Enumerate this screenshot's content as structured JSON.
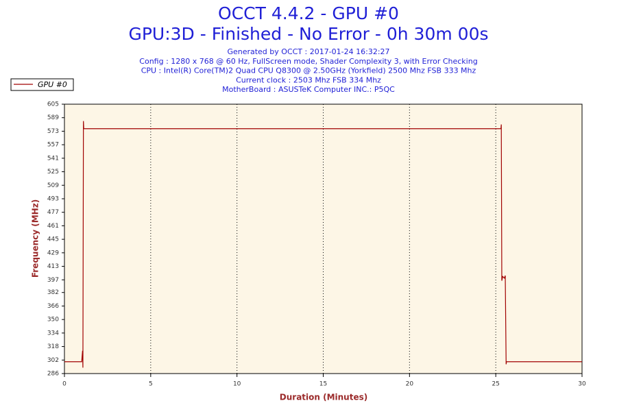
{
  "chart_data": {
    "type": "line",
    "title": "OCCT 4.4.2 - GPU #0",
    "subtitle": "GPU:3D - Finished - No Error - 0h 30m 00s",
    "info": [
      "Generated by OCCT : 2017-01-24 16:32:27",
      "Config : 1280 x 768 @ 60 Hz, FullScreen mode, Shader Complexity 3, with Error Checking",
      "CPU : Intel(R) Core(TM)2 Quad CPU Q8300 @ 2.50GHz (Yorkfield) 2500 Mhz FSB 333 Mhz",
      "Current clock : 2503 Mhz FSB 334 Mhz",
      "MotherBoard : ASUSTeK Computer INC.: P5QC"
    ],
    "xlabel": "Duration (Minutes)",
    "ylabel": "Frequency (MHz)",
    "x": [
      0,
      1.0,
      1.05,
      1.07,
      1.1,
      1.12,
      25.3,
      25.32,
      25.35,
      25.4,
      25.5,
      25.55,
      25.6,
      25.62,
      30
    ],
    "series": [
      {
        "name": "GPU #0",
        "color": "#a00000",
        "values": [
          300,
          300,
          313,
          293,
          585,
          576,
          576,
          581,
          396,
          401,
          399,
          402,
          297,
          300,
          300
        ]
      }
    ],
    "xlim": [
      0,
      30
    ],
    "xticks": [
      0,
      5,
      10,
      15,
      20,
      25,
      30
    ],
    "ylim": [
      286,
      605
    ],
    "yticks": [
      286,
      302,
      318,
      334,
      350,
      366,
      382,
      397,
      413,
      429,
      445,
      461,
      477,
      493,
      509,
      525,
      541,
      557,
      573,
      589,
      605
    ],
    "grid": true
  }
}
